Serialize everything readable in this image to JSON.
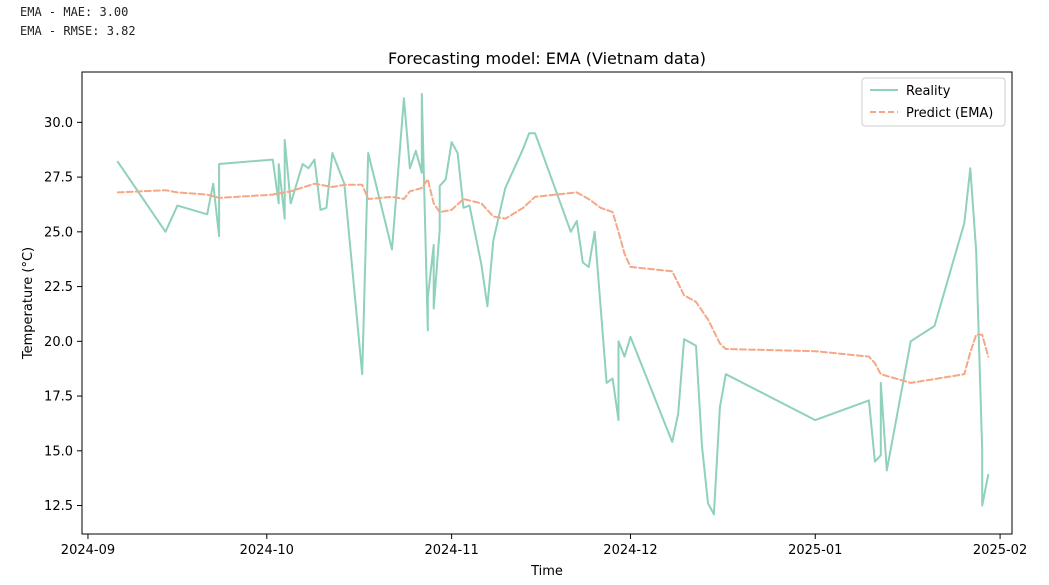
{
  "metrics": {
    "mae_line": "EMA - MAE: 3.00",
    "rmse_line": "EMA - RMSE: 3.82"
  },
  "chart_data": {
    "type": "line",
    "title": "Forecasting model: EMA (Vietnam data)",
    "xlabel": "Time",
    "ylabel": "Temperature (°C)",
    "x_type": "date",
    "xlim": [
      "2024-08-31",
      "2025-02-03"
    ],
    "ylim": [
      11.2,
      32.3
    ],
    "x_ticks": [
      "2024-09-01",
      "2024-10-01",
      "2024-11-01",
      "2024-12-01",
      "2025-01-01",
      "2025-02-01"
    ],
    "x_tick_labels": [
      "2024-09",
      "2024-10",
      "2024-11",
      "2024-12",
      "2025-01",
      "2025-02"
    ],
    "y_ticks": [
      12.5,
      15.0,
      17.5,
      20.0,
      22.5,
      25.0,
      27.5,
      30.0
    ],
    "y_tick_labels": [
      "12.5",
      "15.0",
      "17.5",
      "20.0",
      "22.5",
      "25.0",
      "27.5",
      "30.0"
    ],
    "grid": false,
    "legend_position": "top-right",
    "series": [
      {
        "name": "Reality",
        "color": "#8fd1bb",
        "dash": "solid",
        "points": [
          [
            "2024-09-06",
            28.2
          ],
          [
            "2024-09-14",
            25.0
          ],
          [
            "2024-09-16",
            26.2
          ],
          [
            "2024-09-21",
            25.8
          ],
          [
            "2024-09-22",
            27.2
          ],
          [
            "2024-09-23",
            24.8
          ],
          [
            "2024-09-23",
            28.1
          ],
          [
            "2024-10-02",
            28.3
          ],
          [
            "2024-10-03",
            26.3
          ],
          [
            "2024-10-03",
            28.1
          ],
          [
            "2024-10-04",
            25.6
          ],
          [
            "2024-10-04",
            29.2
          ],
          [
            "2024-10-05",
            26.3
          ],
          [
            "2024-10-07",
            28.1
          ],
          [
            "2024-10-08",
            27.9
          ],
          [
            "2024-10-09",
            28.3
          ],
          [
            "2024-10-10",
            26.0
          ],
          [
            "2024-10-11",
            26.1
          ],
          [
            "2024-10-12",
            28.6
          ],
          [
            "2024-10-14",
            27.2
          ],
          [
            "2024-10-17",
            18.5
          ],
          [
            "2024-10-18",
            28.6
          ],
          [
            "2024-10-22",
            24.2
          ],
          [
            "2024-10-24",
            31.1
          ],
          [
            "2024-10-25",
            27.9
          ],
          [
            "2024-10-26",
            28.7
          ],
          [
            "2024-10-27",
            27.7
          ],
          [
            "2024-10-27",
            31.3
          ],
          [
            "2024-10-28",
            20.5
          ],
          [
            "2024-10-28",
            22.0
          ],
          [
            "2024-10-29",
            24.4
          ],
          [
            "2024-10-29",
            21.5
          ],
          [
            "2024-10-30",
            25.1
          ],
          [
            "2024-10-30",
            27.1
          ],
          [
            "2024-10-31",
            27.4
          ],
          [
            "2024-11-01",
            29.1
          ],
          [
            "2024-11-02",
            28.6
          ],
          [
            "2024-11-03",
            26.1
          ],
          [
            "2024-11-04",
            26.2
          ],
          [
            "2024-11-06",
            23.5
          ],
          [
            "2024-11-07",
            21.6
          ],
          [
            "2024-11-08",
            24.6
          ],
          [
            "2024-11-10",
            27.0
          ],
          [
            "2024-11-13",
            28.8
          ],
          [
            "2024-11-14",
            29.5
          ],
          [
            "2024-11-15",
            29.5
          ],
          [
            "2024-11-21",
            25.0
          ],
          [
            "2024-11-22",
            25.5
          ],
          [
            "2024-11-23",
            23.6
          ],
          [
            "2024-11-24",
            23.4
          ],
          [
            "2024-11-25",
            25.0
          ],
          [
            "2024-11-27",
            18.1
          ],
          [
            "2024-11-28",
            18.3
          ],
          [
            "2024-11-29",
            16.4
          ],
          [
            "2024-11-29",
            20.0
          ],
          [
            "2024-11-30",
            19.3
          ],
          [
            "2024-12-01",
            20.2
          ],
          [
            "2024-12-08",
            15.4
          ],
          [
            "2024-12-09",
            16.7
          ],
          [
            "2024-12-10",
            20.1
          ],
          [
            "2024-12-12",
            19.8
          ],
          [
            "2024-12-13",
            15.2
          ],
          [
            "2024-12-14",
            12.6
          ],
          [
            "2024-12-15",
            12.1
          ],
          [
            "2024-12-16",
            17.0
          ],
          [
            "2024-12-17",
            18.5
          ],
          [
            "2025-01-01",
            16.4
          ],
          [
            "2025-01-10",
            17.3
          ],
          [
            "2025-01-11",
            14.5
          ],
          [
            "2025-01-12",
            14.8
          ],
          [
            "2025-01-12",
            18.1
          ],
          [
            "2025-01-13",
            14.1
          ],
          [
            "2025-01-17",
            20.0
          ],
          [
            "2025-01-21",
            20.7
          ],
          [
            "2025-01-26",
            25.4
          ],
          [
            "2025-01-27",
            27.9
          ],
          [
            "2025-01-28",
            24.1
          ],
          [
            "2025-01-29",
            15.0
          ],
          [
            "2025-01-29",
            12.5
          ],
          [
            "2025-01-30",
            13.9
          ]
        ]
      },
      {
        "name": "Predict (EMA)",
        "color": "#f5a886",
        "dash": "dashed",
        "points": [
          [
            "2024-09-06",
            26.8
          ],
          [
            "2024-09-10",
            26.85
          ],
          [
            "2024-09-14",
            26.9
          ],
          [
            "2024-09-16",
            26.8
          ],
          [
            "2024-09-21",
            26.7
          ],
          [
            "2024-09-23",
            26.55
          ],
          [
            "2024-10-02",
            26.7
          ],
          [
            "2024-10-05",
            26.85
          ],
          [
            "2024-10-09",
            27.2
          ],
          [
            "2024-10-12",
            27.05
          ],
          [
            "2024-10-14",
            27.15
          ],
          [
            "2024-10-17",
            27.15
          ],
          [
            "2024-10-18",
            26.5
          ],
          [
            "2024-10-22",
            26.6
          ],
          [
            "2024-10-24",
            26.5
          ],
          [
            "2024-10-25",
            26.85
          ],
          [
            "2024-10-27",
            27.0
          ],
          [
            "2024-10-28",
            27.4
          ],
          [
            "2024-10-29",
            26.3
          ],
          [
            "2024-10-30",
            25.9
          ],
          [
            "2024-11-01",
            26.0
          ],
          [
            "2024-11-03",
            26.5
          ],
          [
            "2024-11-06",
            26.3
          ],
          [
            "2024-11-08",
            25.7
          ],
          [
            "2024-11-10",
            25.6
          ],
          [
            "2024-11-13",
            26.1
          ],
          [
            "2024-11-15",
            26.6
          ],
          [
            "2024-11-22",
            26.8
          ],
          [
            "2024-11-24",
            26.5
          ],
          [
            "2024-11-26",
            26.1
          ],
          [
            "2024-11-28",
            25.9
          ],
          [
            "2024-11-29",
            25.0
          ],
          [
            "2024-11-30",
            24.0
          ],
          [
            "2024-12-01",
            23.4
          ],
          [
            "2024-12-08",
            23.2
          ],
          [
            "2024-12-10",
            22.1
          ],
          [
            "2024-12-12",
            21.8
          ],
          [
            "2024-12-14",
            21.0
          ],
          [
            "2024-12-16",
            19.9
          ],
          [
            "2024-12-17",
            19.65
          ],
          [
            "2025-01-01",
            19.55
          ],
          [
            "2025-01-10",
            19.3
          ],
          [
            "2025-01-11",
            19.0
          ],
          [
            "2025-01-12",
            18.5
          ],
          [
            "2025-01-17",
            18.1
          ],
          [
            "2025-01-26",
            18.5
          ],
          [
            "2025-01-27",
            19.5
          ],
          [
            "2025-01-28",
            20.3
          ],
          [
            "2025-01-29",
            20.3
          ],
          [
            "2025-01-30",
            19.3
          ]
        ]
      }
    ]
  }
}
